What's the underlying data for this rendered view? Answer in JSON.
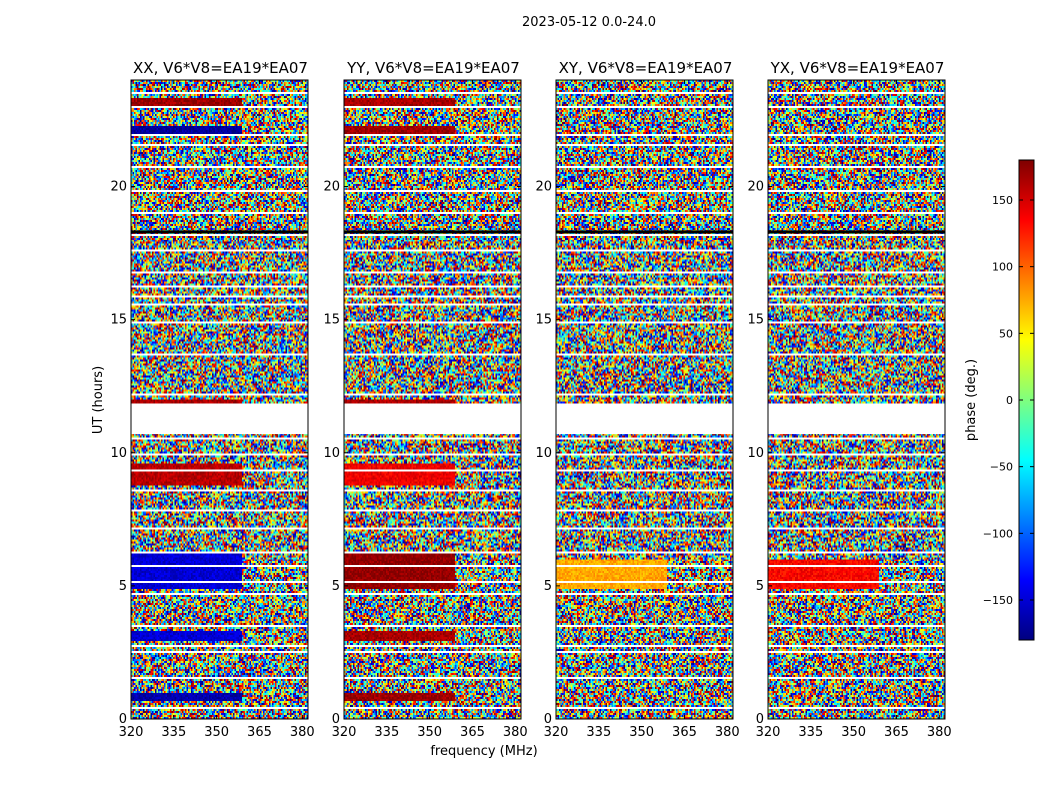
{
  "figure": {
    "suptitle": "2023-05-12 0.0-24.0",
    "ylabel": "UT (hours)",
    "xlabel": "frequency (MHz)"
  },
  "colorbar": {
    "label": "phase (deg.)",
    "range": [
      -180,
      180
    ],
    "ticks": [
      -150,
      -100,
      -50,
      0,
      50,
      100,
      150
    ],
    "tick_labels": [
      "−150",
      "−100",
      "−50",
      "0",
      "50",
      "100",
      "150"
    ],
    "colormap": "jet",
    "colormap_stops": [
      "#00007f",
      "#0000ff",
      "#007fff",
      "#00ffff",
      "#7fff7f",
      "#ffff00",
      "#ff7f00",
      "#ff0000",
      "#7f0000"
    ]
  },
  "chart_data": [
    {
      "type": "heatmap",
      "title": "XX, V6*V8=EA19*EA07",
      "xlim": [
        320,
        382
      ],
      "ylim": [
        0,
        24
      ],
      "xticks": [
        320,
        335,
        350,
        365,
        380
      ],
      "yticks": [
        0,
        5,
        10,
        15,
        20
      ],
      "value_range": [
        -180,
        180
      ],
      "fill": "noise",
      "blocks": [
        {
          "t": [
            0.7,
            1.0
          ],
          "f": [
            320,
            359
          ],
          "phase": -165
        },
        {
          "t": [
            2.9,
            3.3
          ],
          "f": [
            320,
            359
          ],
          "phase": -150
        },
        {
          "t": [
            4.9,
            6.3
          ],
          "f": [
            320,
            359
          ],
          "phase": -150
        },
        {
          "t": [
            8.8,
            9.6
          ],
          "f": [
            320,
            359
          ],
          "phase": 160
        },
        {
          "t": [
            11.7,
            12.0
          ],
          "f": [
            320,
            359
          ],
          "phase": 165
        },
        {
          "t": [
            22.0,
            22.3
          ],
          "f": [
            320,
            359
          ],
          "phase": -170
        },
        {
          "t": [
            23.0,
            23.3
          ],
          "f": [
            320,
            359
          ],
          "phase": 170
        }
      ],
      "flagged_hours": [
        0.45,
        1.55,
        2.55,
        2.75,
        3.55,
        4.75,
        5.2,
        5.75,
        6.3,
        7.2,
        7.85,
        8.65,
        9.35,
        10.0,
        10.6,
        11.85,
        12.2,
        13.7,
        14.9,
        15.6,
        15.9,
        16.25,
        16.8,
        17.6,
        18.25,
        19.05,
        19.9,
        20.75,
        21.6,
        22.0,
        23.05,
        23.55
      ]
    },
    {
      "type": "heatmap",
      "title": "YY, V6*V8=EA19*EA07",
      "xlim": [
        320,
        382
      ],
      "ylim": [
        0,
        24
      ],
      "xticks": [
        320,
        335,
        350,
        365,
        380
      ],
      "yticks": [
        0,
        5,
        10,
        15,
        20
      ],
      "value_range": [
        -180,
        180
      ],
      "fill": "noise",
      "blocks": [
        {
          "t": [
            0.7,
            1.0
          ],
          "f": [
            320,
            359
          ],
          "phase": 170
        },
        {
          "t": [
            2.9,
            3.3
          ],
          "f": [
            320,
            359
          ],
          "phase": 165
        },
        {
          "t": [
            4.9,
            6.3
          ],
          "f": [
            320,
            359
          ],
          "phase": 175
        },
        {
          "t": [
            8.8,
            9.6
          ],
          "f": [
            320,
            359
          ],
          "phase": 140
        },
        {
          "t": [
            11.7,
            12.0
          ],
          "f": [
            320,
            359
          ],
          "phase": 165
        },
        {
          "t": [
            22.0,
            22.3
          ],
          "f": [
            320,
            359
          ],
          "phase": 170
        },
        {
          "t": [
            23.0,
            23.3
          ],
          "f": [
            320,
            359
          ],
          "phase": 165
        }
      ],
      "flagged_hours": [
        0.45,
        1.55,
        2.55,
        2.75,
        3.55,
        4.75,
        5.2,
        5.75,
        6.3,
        7.2,
        7.85,
        8.65,
        9.35,
        10.0,
        10.6,
        11.85,
        12.2,
        13.7,
        14.9,
        15.6,
        15.9,
        16.25,
        16.8,
        17.6,
        18.25,
        19.05,
        19.9,
        20.75,
        21.6,
        22.0,
        23.05,
        23.55
      ]
    },
    {
      "type": "heatmap",
      "title": "XY, V6*V8=EA19*EA07",
      "xlim": [
        320,
        382
      ],
      "ylim": [
        0,
        24
      ],
      "xticks": [
        320,
        335,
        350,
        365,
        380
      ],
      "yticks": [
        0,
        5,
        10,
        15,
        20
      ],
      "value_range": [
        -180,
        180
      ],
      "fill": "noise",
      "blocks": [
        {
          "t": [
            4.9,
            6.0
          ],
          "f": [
            320,
            359
          ],
          "phase": 75
        }
      ],
      "flagged_hours": [
        0.45,
        1.55,
        2.55,
        2.75,
        3.55,
        4.75,
        5.2,
        5.75,
        6.3,
        7.2,
        7.85,
        8.65,
        9.35,
        10.0,
        10.6,
        11.85,
        12.2,
        13.7,
        14.9,
        15.6,
        15.9,
        16.25,
        16.8,
        17.6,
        18.25,
        19.05,
        19.9,
        20.75,
        21.6,
        22.0,
        23.05,
        23.55
      ]
    },
    {
      "type": "heatmap",
      "title": "YX, V6*V8=EA19*EA07",
      "xlim": [
        320,
        382
      ],
      "ylim": [
        0,
        24
      ],
      "xticks": [
        320,
        335,
        350,
        365,
        380
      ],
      "yticks": [
        0,
        5,
        10,
        15,
        20
      ],
      "value_range": [
        -180,
        180
      ],
      "fill": "noise",
      "blocks": [
        {
          "t": [
            4.9,
            6.0
          ],
          "f": [
            320,
            359
          ],
          "phase": 135
        }
      ],
      "flagged_hours": [
        0.45,
        1.55,
        2.55,
        2.75,
        3.55,
        4.75,
        5.2,
        5.75,
        6.3,
        7.2,
        7.85,
        8.65,
        9.35,
        10.0,
        10.6,
        11.85,
        12.2,
        13.7,
        14.9,
        15.6,
        15.9,
        16.25,
        16.8,
        17.6,
        18.25,
        19.05,
        19.9,
        20.75,
        21.6,
        22.0,
        23.05,
        23.55
      ]
    }
  ]
}
